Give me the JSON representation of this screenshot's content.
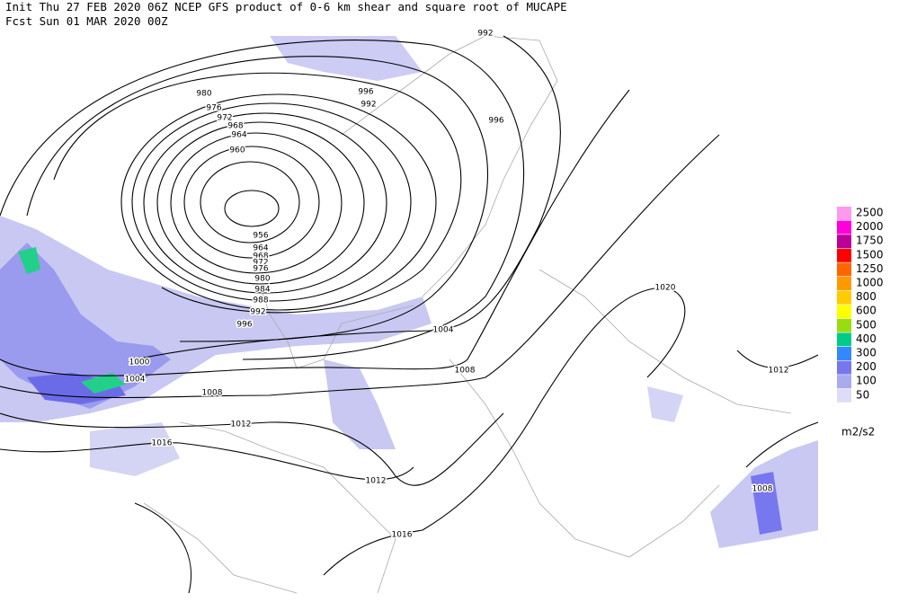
{
  "header": {
    "line1": "Init  Thu 27 FEB 2020 06Z  NCEP GFS product of 0-6 km shear and square root of MUCAPE",
    "line2": "Fcst Sun 01 MAR 2020 00Z"
  },
  "legend": {
    "unit": "m2/s2",
    "levels": [
      {
        "label": "2500",
        "color": "#ff99ee"
      },
      {
        "label": "2000",
        "color": "#ff00dd"
      },
      {
        "label": "1750",
        "color": "#bb0099"
      },
      {
        "label": "1500",
        "color": "#ff0000"
      },
      {
        "label": "1250",
        "color": "#ff6600"
      },
      {
        "label": "1000",
        "color": "#ff9900"
      },
      {
        "label": "800",
        "color": "#ffcc00"
      },
      {
        "label": "600",
        "color": "#ffff00"
      },
      {
        "label": "500",
        "color": "#99dd11"
      },
      {
        "label": "400",
        "color": "#00cc88"
      },
      {
        "label": "300",
        "color": "#3388ff"
      },
      {
        "label": "200",
        "color": "#7777ee"
      },
      {
        "label": "100",
        "color": "#aaaaee"
      },
      {
        "label": "50",
        "color": "#ddddf7"
      }
    ]
  },
  "contour_labels": [
    "992",
    "996",
    "992",
    "996",
    "980",
    "976",
    "972",
    "968",
    "964",
    "960",
    "956",
    "964",
    "968",
    "972",
    "976",
    "980",
    "984",
    "988",
    "992",
    "996",
    "1004",
    "1008",
    "1000",
    "1004",
    "1008",
    "1012",
    "1016",
    "1012",
    "1016",
    "1020",
    "1012",
    "1008"
  ]
}
